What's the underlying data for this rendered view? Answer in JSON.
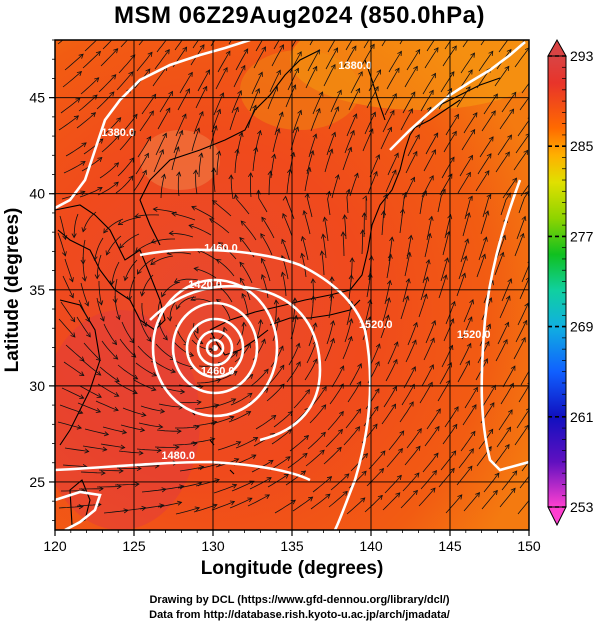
{
  "title": "MSM 06Z29Aug2024 (850.0hPa)",
  "xlabel": "Longitude (degrees)",
  "ylabel": "Latitude  (degrees)",
  "credits": {
    "line1": "Drawing by DCL (https://www.gfd-dennou.org/library/dcl/)",
    "line2": "Data from http://database.rish.kyoto-u.ac.jp/arch/jmadata/"
  },
  "map": {
    "lon_range": [
      120,
      150
    ],
    "lat_range": [
      22.5,
      48
    ],
    "x_ticks": [
      "120",
      "125",
      "130",
      "135",
      "140",
      "145",
      "150"
    ],
    "y_ticks": [
      "25",
      "30",
      "35",
      "40",
      "45"
    ],
    "grid": true,
    "field": "temperature (shaded)",
    "vectors": "wind streamlines",
    "typhoon_center": {
      "lon": 130.2,
      "lat": 32.6
    },
    "contour_labels": [
      {
        "text": "1380.0",
        "lon": 139,
        "lat": 46.5
      },
      {
        "text": "1380.0",
        "lon": 124,
        "lat": 43
      },
      {
        "text": "1460.0",
        "lon": 130.5,
        "lat": 37
      },
      {
        "text": "1420.0",
        "lon": 129.5,
        "lat": 35.1
      },
      {
        "text": "1520.0",
        "lon": 140.3,
        "lat": 33
      },
      {
        "text": "1520.0",
        "lon": 146.5,
        "lat": 32.5
      },
      {
        "text": "1480.0",
        "lon": 127.8,
        "lat": 26.2
      },
      {
        "text": "1460.0",
        "lon": 130.3,
        "lat": 30.6
      }
    ]
  },
  "colorbar": {
    "labels": [
      "293",
      "285",
      "277",
      "269",
      "261",
      "253"
    ],
    "colors": [
      "#d94444",
      "#e8342a",
      "#ff6a00",
      "#ffb000",
      "#e0e000",
      "#8ed400",
      "#10c020",
      "#10d0a0",
      "#10b0e0",
      "#1060ff",
      "#1010c0",
      "#6010c0",
      "#c010d0",
      "#ff40d0"
    ]
  }
}
